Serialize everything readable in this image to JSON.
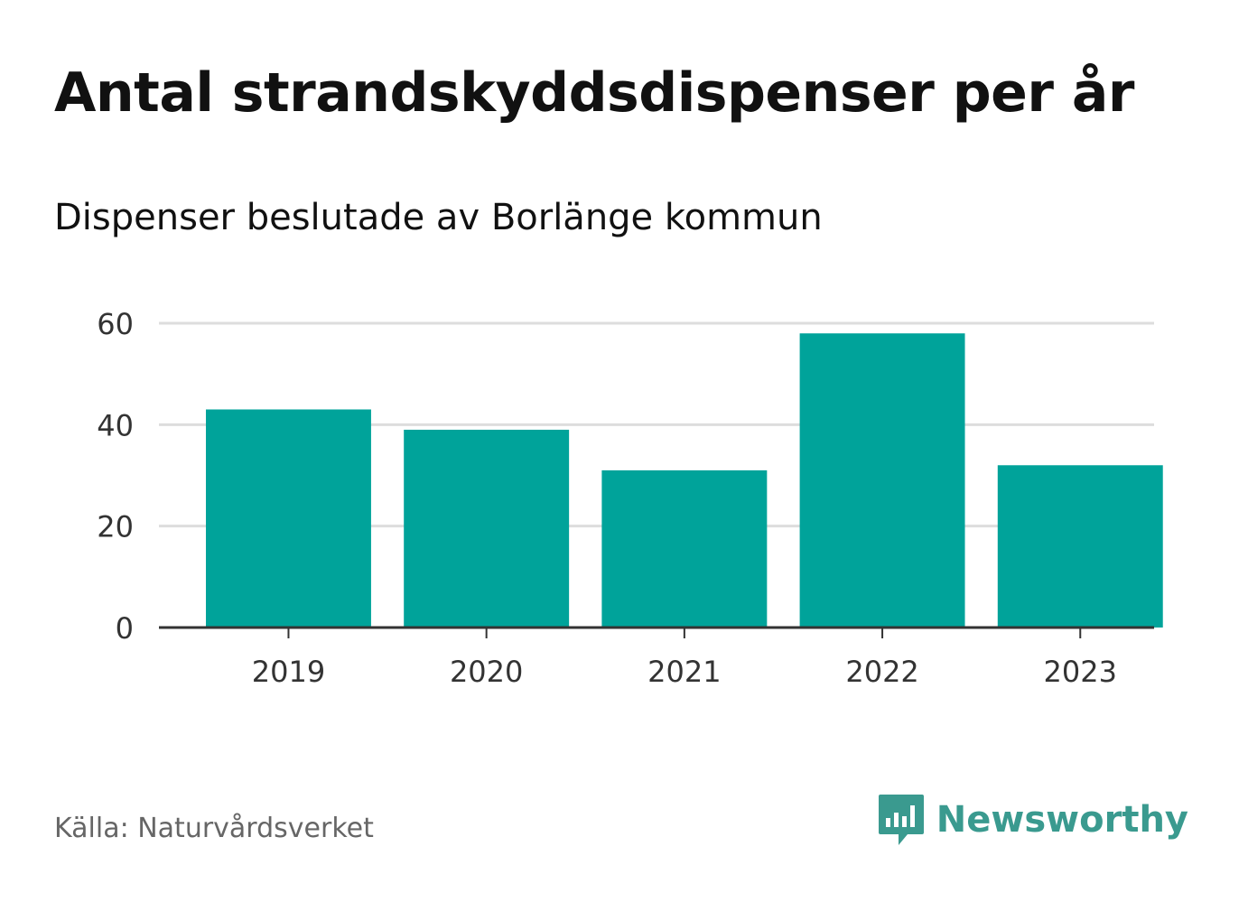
{
  "title": "Antal strandskyddsdispenser per år",
  "subtitle": "Dispenser beslutade av Borlänge kommun",
  "source": "Källa: Naturvårdsverket",
  "brand": {
    "name": "Newsworthy",
    "icon": "newsworthy-logo-icon",
    "color": "#3a9a8f"
  },
  "colors": {
    "bar": "#00a39a",
    "grid": "#dddddd",
    "axis": "#333333",
    "tick_text": "#333333"
  },
  "chart_data": {
    "type": "bar",
    "title": "Antal strandskyddsdispenser per år",
    "subtitle": "Dispenser beslutade av Borlänge kommun",
    "xlabel": "",
    "ylabel": "",
    "categories": [
      "2019",
      "2020",
      "2021",
      "2022",
      "2023"
    ],
    "values": [
      43,
      39,
      31,
      58,
      32
    ],
    "ylim": [
      0,
      60
    ],
    "yticks": [
      "0",
      "20",
      "40",
      "60"
    ],
    "grid": true,
    "legend": "none"
  }
}
